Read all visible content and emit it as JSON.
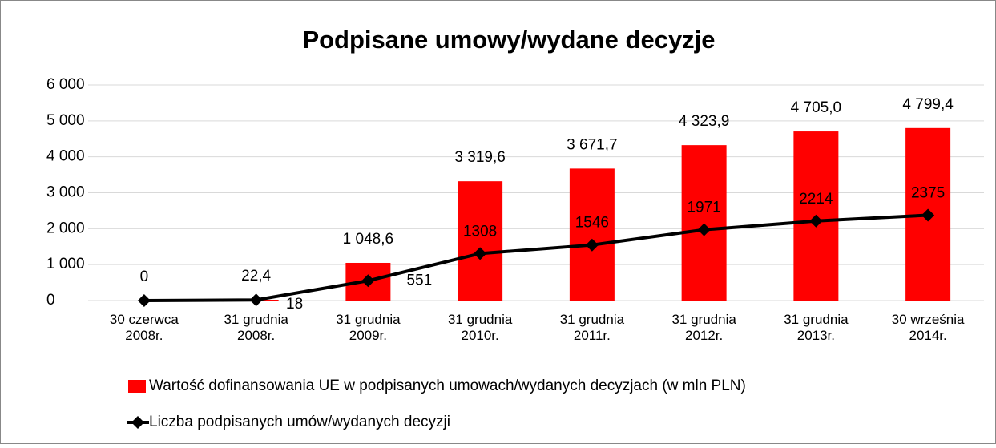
{
  "chart_data": {
    "type": "bar",
    "title": "Podpisane umowy/wydane decyzje",
    "categories": [
      [
        "30 czerwca",
        "2008r."
      ],
      [
        "31 grudnia",
        "2008r."
      ],
      [
        "31 grudnia",
        "2009r."
      ],
      [
        "31 grudnia",
        "2010r."
      ],
      [
        "31 grudnia",
        "2011r."
      ],
      [
        "31 grudnia",
        "2012r."
      ],
      [
        "31 grudnia",
        "2013r."
      ],
      [
        "30 września",
        "2014r."
      ]
    ],
    "series": [
      {
        "name": "Wartość dofinansowania UE w podpisanych umowach/wydanych decyzjach (w mln PLN)",
        "type": "bar",
        "color": "#ff0000",
        "values": [
          0,
          22.4,
          1048.6,
          3319.6,
          3671.7,
          4323.9,
          4705.0,
          4799.4
        ],
        "value_labels": [
          "0",
          "22,4",
          "1 048,6",
          "3 319,6",
          "3 671,7",
          "4 323,9",
          "4 705,0",
          "4 799,4"
        ]
      },
      {
        "name": "Liczba podpisanych umów/wydanych decyzji",
        "type": "line",
        "color": "#000000",
        "values": [
          0,
          18,
          551,
          1308,
          1546,
          1971,
          2214,
          2375
        ],
        "value_labels": [
          null,
          "18",
          "551",
          "1308",
          "1546",
          "1971",
          "2214",
          "2375"
        ]
      }
    ],
    "ylim": [
      0,
      6000
    ],
    "yticks": [
      0,
      {
        "value": 1000,
        "label": "1 000"
      },
      {
        "value": 2000,
        "label": "2 000"
      },
      {
        "value": 3000,
        "label": "3 000"
      },
      {
        "value": 4000,
        "label": "4 000"
      },
      {
        "value": 5000,
        "label": "5 000"
      },
      {
        "value": 6000,
        "label": "6 000"
      }
    ],
    "grid": true,
    "legend": "bottom"
  }
}
